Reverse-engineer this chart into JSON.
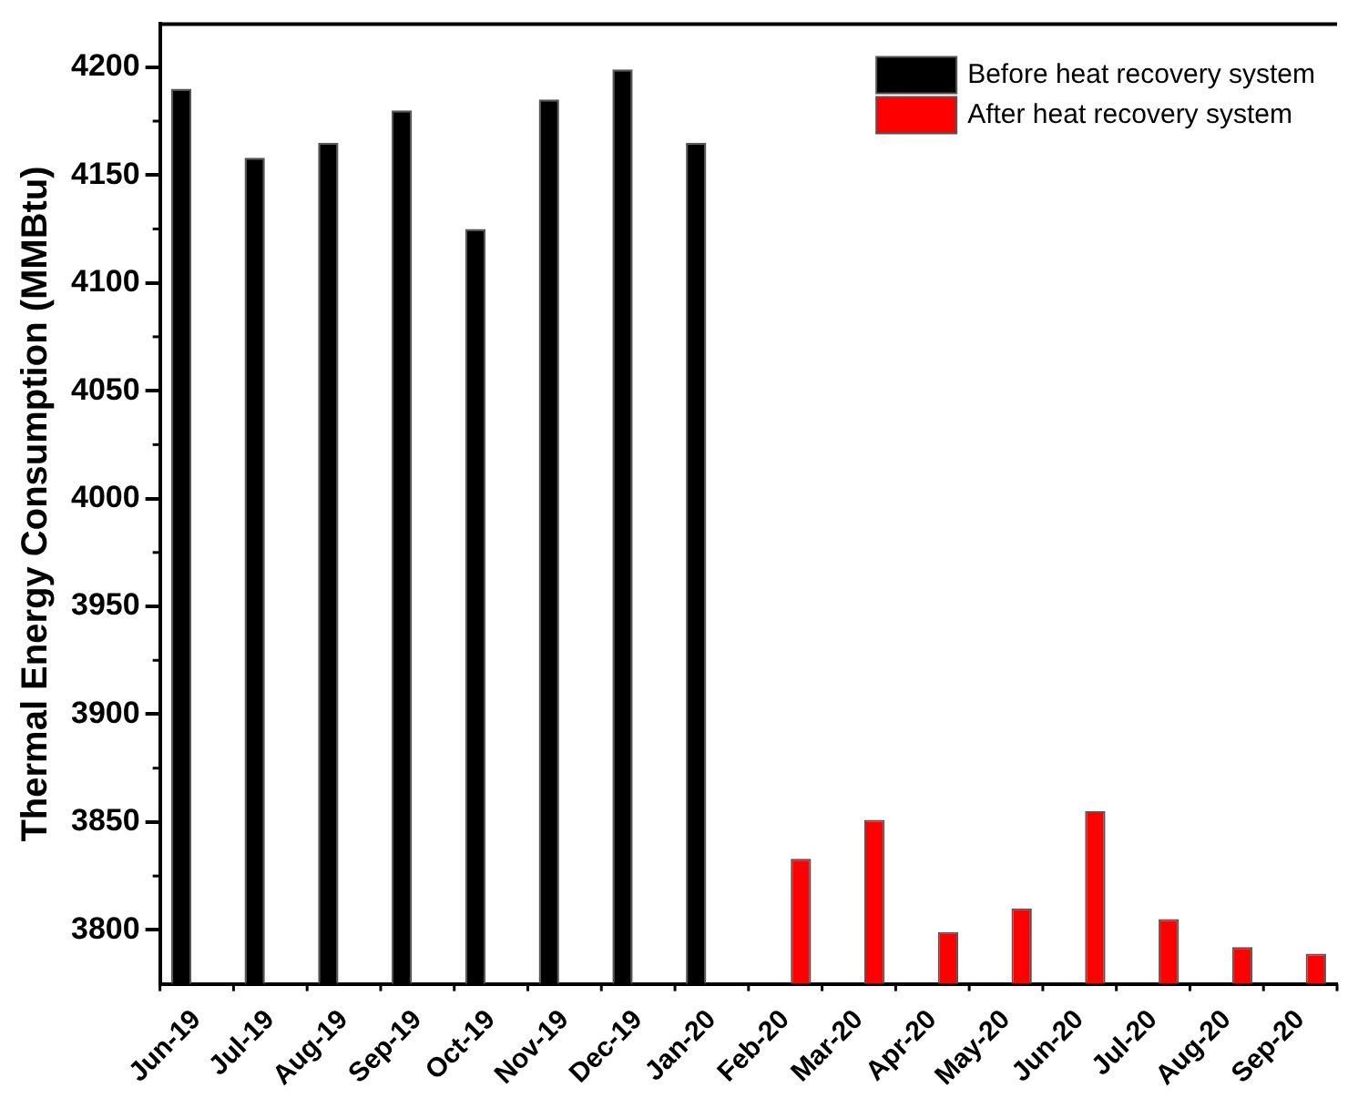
{
  "chart_data": {
    "type": "bar",
    "ylabel": "Thermal Energy Consumption (MMBtu)",
    "categories": [
      "Jun-19",
      "Jul-19",
      "Aug-19",
      "Sep-19",
      "Oct-19",
      "Nov-19",
      "Dec-19",
      "Jan-20",
      "Feb-20",
      "Mar-20",
      "Apr-20",
      "May-20",
      "Jun-20",
      "Jul-20",
      "Aug-20",
      "Sep-20"
    ],
    "series": [
      {
        "name": "Before heat recovery system",
        "color": "#000000",
        "values": [
          4190,
          4158,
          4165,
          4180,
          4125,
          4185,
          4199,
          4165,
          null,
          null,
          null,
          null,
          null,
          null,
          null,
          null
        ]
      },
      {
        "name": "After heat recovery system",
        "color": "#ff0000",
        "values": [
          null,
          null,
          null,
          null,
          null,
          null,
          null,
          null,
          3833,
          3851,
          3799,
          3810,
          3855,
          3805,
          3792,
          3789
        ]
      }
    ],
    "ylim": [
      3775,
      4220
    ],
    "yticks": [
      3800,
      3850,
      3900,
      3950,
      4000,
      4050,
      4100,
      4150,
      4200
    ],
    "grid": false,
    "legend": "top right"
  }
}
